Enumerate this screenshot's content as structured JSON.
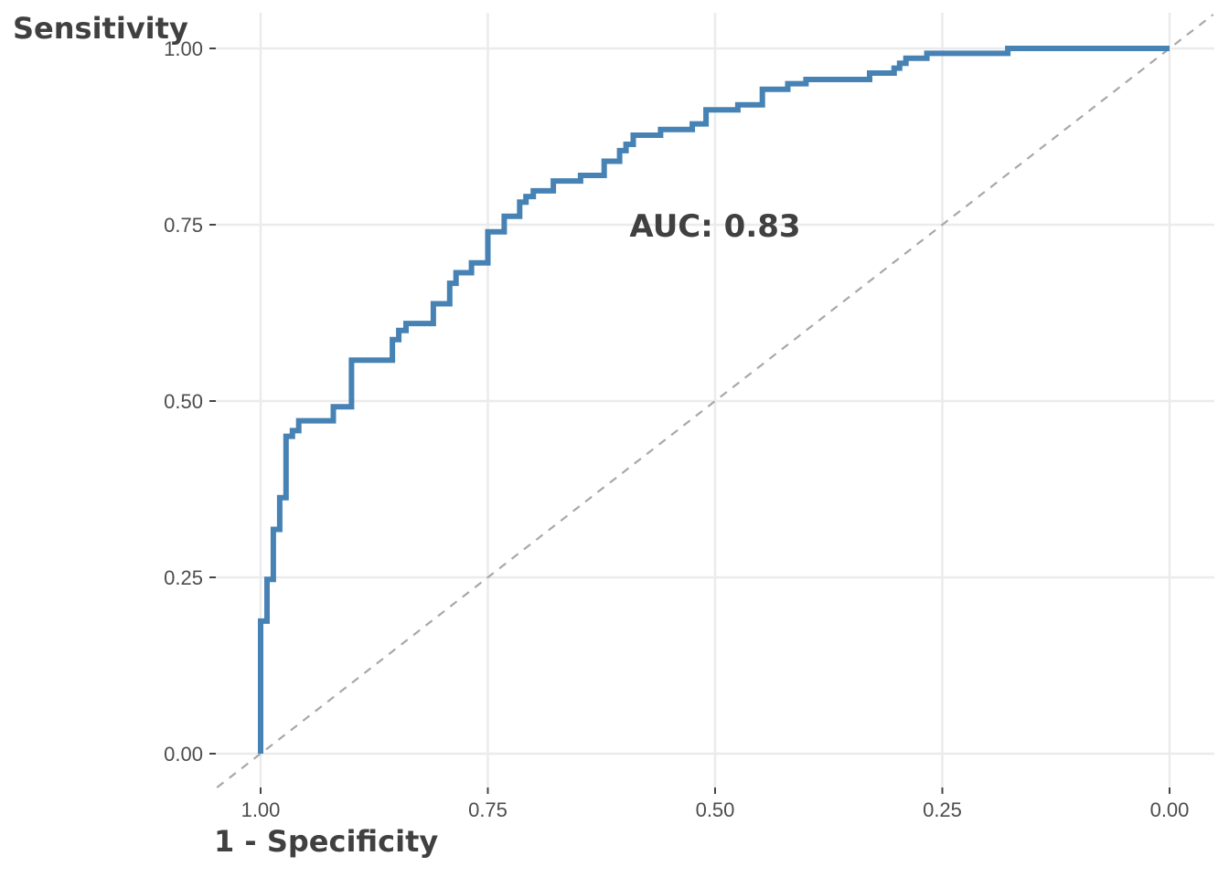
{
  "chart_data": {
    "type": "line",
    "ylabel": "Sensitivity",
    "xlabel": "1 - Specificity",
    "annotation": "AUC: 0.83",
    "x_reversed": true,
    "xlim": [
      1.0,
      0.0
    ],
    "ylim": [
      0.0,
      1.0
    ],
    "x_ticks": [
      "1.00",
      "0.75",
      "0.50",
      "0.25",
      "0.00"
    ],
    "x_tick_values": [
      1.0,
      0.75,
      0.5,
      0.25,
      0.0
    ],
    "y_ticks": [
      "0.00",
      "0.25",
      "0.50",
      "0.75",
      "1.00"
    ],
    "y_tick_values": [
      0.0,
      0.25,
      0.5,
      0.75,
      1.0
    ],
    "grid": true,
    "reference_line": "diagonal",
    "colors": {
      "roc": "#4682b4",
      "reference": "#a8a8a8",
      "grid": "#ebebeb",
      "text": "#404040"
    },
    "series": [
      {
        "x": [
          1.0,
          1.0,
          0.993,
          0.993,
          0.986,
          0.986,
          0.979,
          0.979,
          0.972,
          0.972,
          0.965,
          0.965,
          0.958,
          0.958,
          0.92,
          0.92,
          0.9,
          0.9,
          0.855,
          0.855,
          0.848,
          0.848,
          0.84,
          0.84,
          0.81,
          0.81,
          0.792,
          0.792,
          0.785,
          0.785,
          0.768,
          0.768,
          0.75,
          0.75,
          0.732,
          0.732,
          0.715,
          0.715,
          0.708,
          0.708,
          0.7,
          0.7,
          0.678,
          0.678,
          0.648,
          0.648,
          0.622,
          0.622,
          0.605,
          0.605,
          0.598,
          0.598,
          0.59,
          0.59,
          0.56,
          0.56,
          0.525,
          0.525,
          0.51,
          0.51,
          0.475,
          0.475,
          0.448,
          0.448,
          0.42,
          0.42,
          0.4,
          0.4,
          0.33,
          0.33,
          0.303,
          0.303,
          0.297,
          0.297,
          0.29,
          0.29,
          0.267,
          0.267,
          0.178,
          0.178,
          0.0
        ],
        "y": [
          0.0,
          0.188,
          0.188,
          0.247,
          0.247,
          0.318,
          0.318,
          0.363,
          0.363,
          0.45,
          0.45,
          0.458,
          0.458,
          0.472,
          0.472,
          0.492,
          0.492,
          0.558,
          0.558,
          0.587,
          0.587,
          0.6,
          0.6,
          0.61,
          0.61,
          0.638,
          0.638,
          0.667,
          0.667,
          0.682,
          0.682,
          0.696,
          0.696,
          0.74,
          0.74,
          0.762,
          0.762,
          0.782,
          0.782,
          0.79,
          0.79,
          0.798,
          0.798,
          0.812,
          0.812,
          0.82,
          0.82,
          0.84,
          0.84,
          0.855,
          0.855,
          0.864,
          0.864,
          0.877,
          0.877,
          0.885,
          0.885,
          0.893,
          0.893,
          0.913,
          0.913,
          0.92,
          0.92,
          0.942,
          0.942,
          0.95,
          0.95,
          0.956,
          0.956,
          0.965,
          0.965,
          0.972,
          0.972,
          0.979,
          0.979,
          0.986,
          0.986,
          0.993,
          0.993,
          1.0,
          1.0
        ]
      }
    ]
  }
}
